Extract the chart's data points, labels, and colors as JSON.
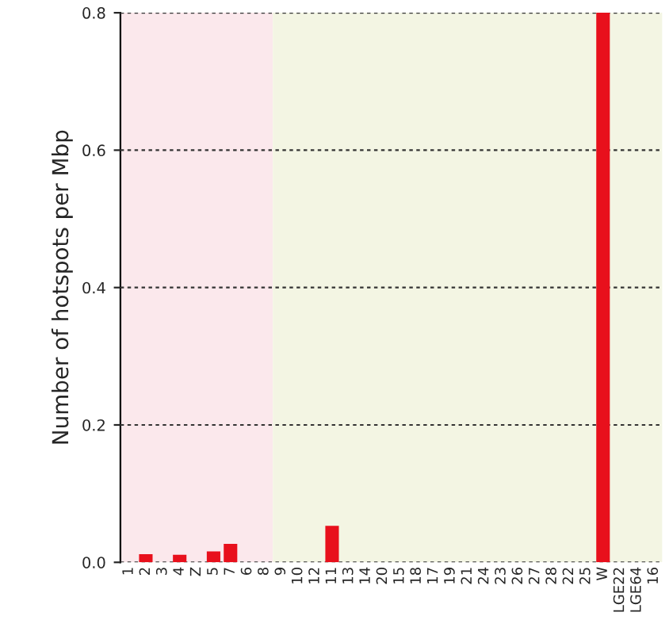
{
  "chart_data": {
    "type": "bar",
    "ylabel": "Number of hotspots per Mbp",
    "categories": [
      "1",
      "2",
      "3",
      "4",
      "Z",
      "5",
      "7",
      "6",
      "8",
      "9",
      "10",
      "12",
      "11",
      "13",
      "14",
      "20",
      "15",
      "18",
      "17",
      "19",
      "21",
      "24",
      "23",
      "26",
      "27",
      "28",
      "22",
      "25",
      "W",
      "LGE22",
      "LGE64",
      "16"
    ],
    "values": [
      0,
      0.012,
      0,
      0.011,
      0,
      0.016,
      0.027,
      0,
      0,
      0,
      0,
      0,
      0.053,
      0,
      0,
      0,
      0,
      0,
      0,
      0,
      0,
      0,
      0,
      0,
      0,
      0,
      0,
      0,
      0.8,
      0,
      0,
      0
    ],
    "color": "#e8101c",
    "ylim": [
      0,
      0.8
    ],
    "yticks": [
      {
        "value": 0,
        "label": "0.0"
      },
      {
        "value": 0.2,
        "label": "0.2"
      },
      {
        "value": 0.4,
        "label": "0.4"
      },
      {
        "value": 0.6,
        "label": "0.6"
      },
      {
        "value": 0.8,
        "label": "0.8"
      }
    ],
    "grid": "y",
    "bands": [
      {
        "axis": "x",
        "from": "1",
        "to": "8",
        "color": "#fbe8ec"
      },
      {
        "axis": "x",
        "from": "9",
        "to": "16",
        "color": "#f3f5e3"
      }
    ]
  }
}
